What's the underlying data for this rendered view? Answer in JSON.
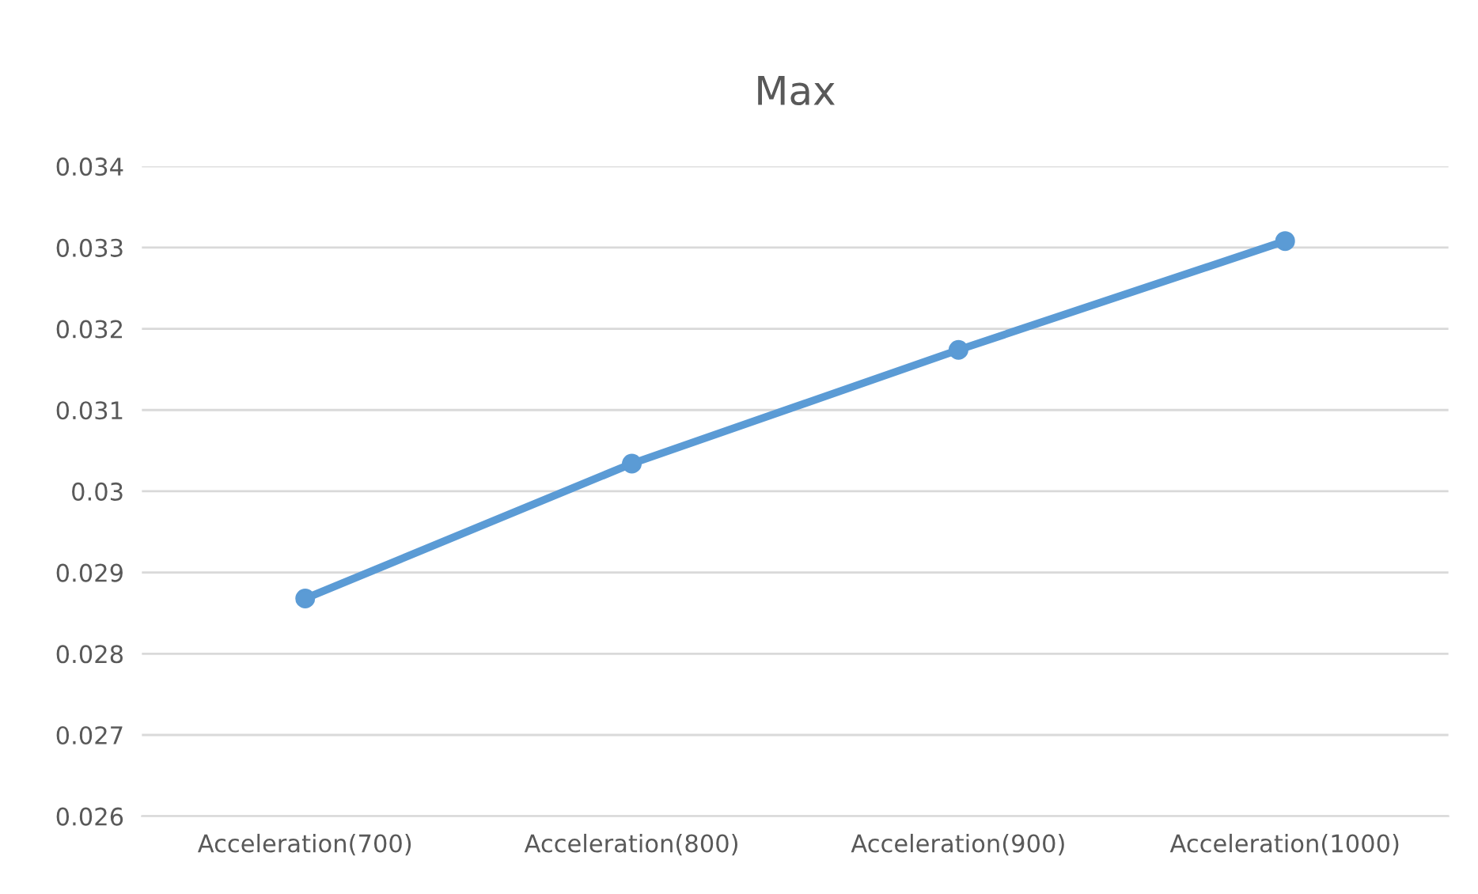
{
  "chart_data": {
    "type": "line",
    "title": "Max",
    "categories": [
      "Acceleration(700)",
      "Acceleration(800)",
      "Acceleration(900)",
      "Acceleration(1000)"
    ],
    "series": [
      {
        "color": "#5b9bd5",
        "values": [
          0.02868,
          0.03034,
          0.03174,
          0.03308
        ]
      }
    ],
    "ylim": [
      0.026,
      0.034
    ],
    "yticks": [
      0.026,
      0.027,
      0.028,
      0.029,
      {
        "value": 0.03,
        "label": "0.03"
      },
      0.031,
      0.032,
      0.033,
      0.034
    ],
    "grid": "y",
    "marker": "circle",
    "line_style": "solid"
  }
}
